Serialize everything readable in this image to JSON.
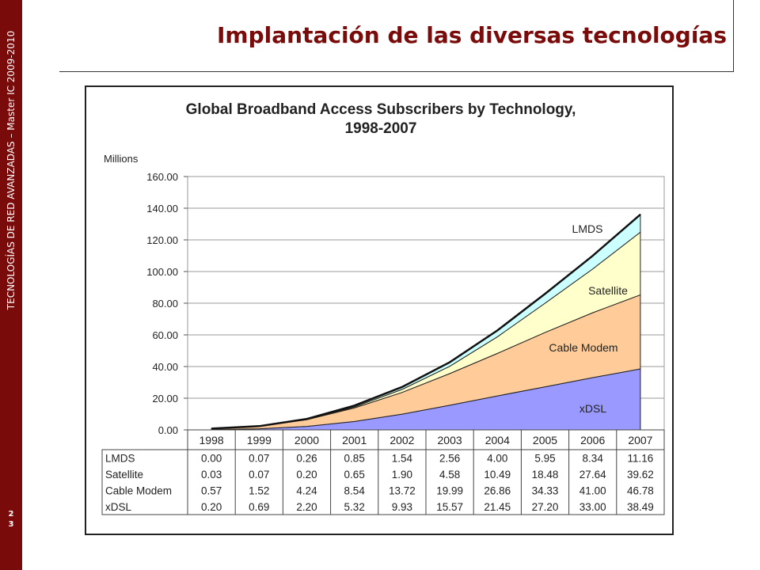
{
  "sidebar": {
    "text": "TECNOLOGÍAS DE RED AVANZADAS – Master IC 2009-2010",
    "page_digits": [
      "2",
      "3"
    ]
  },
  "slide": {
    "title": "Implantación de las diversas tecnologías"
  },
  "colors": {
    "brand": "#7a0b0b",
    "xdsl": "#9999ff",
    "cable": "#ffcc99",
    "satellite": "#ffffcc",
    "lmds": "#ccffff"
  },
  "chart_data": {
    "type": "area",
    "title_line1": "Global Broadband Access Subscribers by Technology,",
    "title_line2": "1998-2007",
    "ylabel": "Millions",
    "ylim": [
      0,
      160
    ],
    "yticks": [
      "0.00",
      "20.00",
      "40.00",
      "60.00",
      "80.00",
      "100.00",
      "120.00",
      "140.00",
      "160.00"
    ],
    "stacked": true,
    "grid": true,
    "categories": [
      "1998",
      "1999",
      "2000",
      "2001",
      "2002",
      "2003",
      "2004",
      "2005",
      "2006",
      "2007"
    ],
    "series": [
      {
        "name": "xDSL",
        "values": [
          0.2,
          0.69,
          2.2,
          5.32,
          9.93,
          15.57,
          21.45,
          27.2,
          33.0,
          38.49
        ],
        "color": "#9999ff"
      },
      {
        "name": "Cable Modem",
        "values": [
          0.57,
          1.52,
          4.24,
          8.54,
          13.72,
          19.99,
          26.86,
          34.33,
          41.0,
          46.78
        ],
        "color": "#ffcc99"
      },
      {
        "name": "Satellite",
        "values": [
          0.03,
          0.07,
          0.2,
          0.65,
          1.9,
          4.58,
          10.49,
          18.48,
          27.64,
          39.62
        ],
        "color": "#ffffcc"
      },
      {
        "name": "LMDS",
        "values": [
          0.0,
          0.07,
          0.26,
          0.85,
          1.54,
          2.56,
          4.0,
          5.95,
          8.34,
          11.16
        ],
        "color": "#ccffff"
      }
    ],
    "table": {
      "rows": [
        {
          "label": "LMDS",
          "values": [
            "0.00",
            "0.07",
            "0.26",
            "0.85",
            "1.54",
            "2.56",
            "4.00",
            "5.95",
            "8.34",
            "11.16"
          ]
        },
        {
          "label": "Satellite",
          "values": [
            "0.03",
            "0.07",
            "0.20",
            "0.65",
            "1.90",
            "4.58",
            "10.49",
            "18.48",
            "27.64",
            "39.62"
          ]
        },
        {
          "label": "Cable Modem",
          "values": [
            "0.57",
            "1.52",
            "4.24",
            "8.54",
            "13.72",
            "19.99",
            "26.86",
            "34.33",
            "41.00",
            "46.78"
          ]
        },
        {
          "label": "xDSL",
          "values": [
            "0.20",
            "0.69",
            "2.20",
            "5.32",
            "9.93",
            "15.57",
            "21.45",
            "27.20",
            "33.00",
            "38.49"
          ]
        }
      ]
    }
  }
}
